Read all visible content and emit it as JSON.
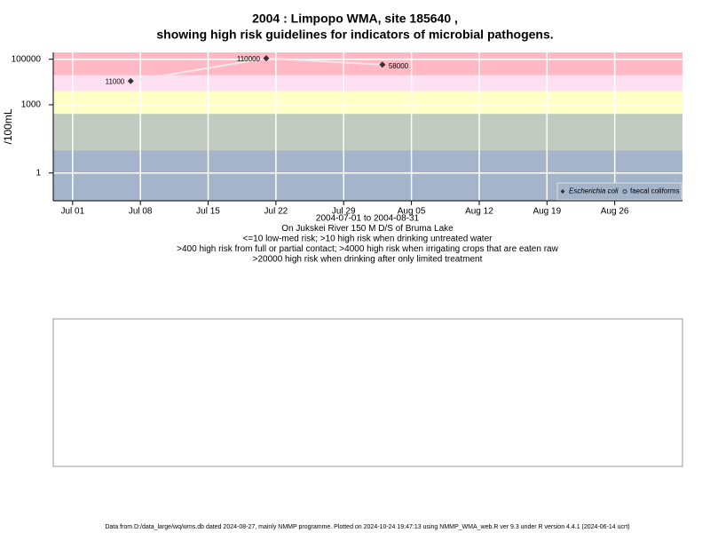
{
  "chart_data": {
    "type": "line",
    "title": [
      "2004 : Limpopo WMA, site 185640 ,",
      "showing high risk guidelines for indicators of microbial pathogens."
    ],
    "subtitle": [
      "2004-07-01 to 2004-08-31",
      "On Jukskei River 150 M D/S of Bruma Lake",
      "<=10 low-med risk; >10 high risk when drinking untreated water",
      ">400 high risk from full or partial contact; >4000 high risk when irrigating crops that are eaten raw",
      ">20000 high risk when drinking after only limited treatment"
    ],
    "ylabel": "/100mL",
    "footer": "Data from D:/data_large/wq/wms.db dated 2024-08-27, mainly NMMP programme. Plotted on 2024-10-24 19:47:13 using NMMP_WMA_web.R ver 9.3 under R version 4.4.1 (2024-06-14 ucrt)",
    "x": [
      "2004-07-07",
      "2004-07-21",
      "2004-08-02"
    ],
    "series": [
      {
        "name": "Escherichia coli",
        "color": "#333333",
        "values": [
          11000,
          110000,
          58000
        ]
      },
      {
        "name": "faecal coliforms",
        "color": "#333333",
        "values": [
          null,
          null,
          null
        ]
      }
    ],
    "line_color": "#f2e6e8",
    "xlim": [
      "2004-06-29",
      "2004-09-02"
    ],
    "xticks": [
      {
        "value": "2004-07-01",
        "label": "Jul 01"
      },
      {
        "value": "2004-07-08",
        "label": "Jul 08"
      },
      {
        "value": "2004-07-15",
        "label": "Jul 15"
      },
      {
        "value": "2004-07-22",
        "label": "Jul 22"
      },
      {
        "value": "2004-07-29",
        "label": "Jul 29"
      },
      {
        "value": "2004-08-05",
        "label": "Aug 05"
      },
      {
        "value": "2004-08-12",
        "label": "Aug 12"
      },
      {
        "value": "2004-08-19",
        "label": "Aug 19"
      },
      {
        "value": "2004-08-26",
        "label": "Aug 26"
      }
    ],
    "ylim": [
      0.06,
      200000
    ],
    "yticks": [
      1,
      1000,
      100000
    ],
    "log_y": true,
    "grid": true,
    "band_limits": [
      10,
      400,
      4000,
      20000
    ],
    "band_colors": [
      "#a3b4cb",
      "#c2cbbf",
      "#ffffc8",
      "#ffe0f2",
      "#ffb8c4"
    ],
    "legend": "lower right"
  }
}
